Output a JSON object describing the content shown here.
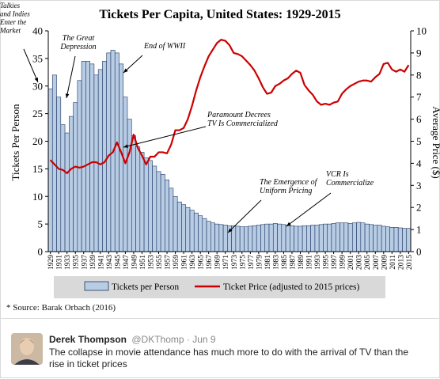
{
  "chart_data": {
    "type": "bar+line",
    "title": "Tickets Per Capita, United States: 1929-2015",
    "ylabel_left": "Tickets Per Person",
    "ylabel_right": "Average Price ($)",
    "ylim_left": [
      0,
      40
    ],
    "ylim_right": [
      0,
      10
    ],
    "yticks_left": [
      "0",
      "5",
      "10",
      "15",
      "20",
      "25",
      "30",
      "35",
      "40"
    ],
    "yticks_right": [
      "0",
      "1",
      "2",
      "3",
      "4",
      "5",
      "6",
      "7",
      "8",
      "9",
      "10"
    ],
    "grid": false,
    "legend_position": "bottom",
    "x": [
      1929,
      1930,
      1931,
      1932,
      1933,
      1934,
      1935,
      1936,
      1937,
      1938,
      1939,
      1940,
      1941,
      1942,
      1943,
      1944,
      1945,
      1946,
      1947,
      1948,
      1949,
      1950,
      1951,
      1952,
      1953,
      1954,
      1955,
      1956,
      1957,
      1958,
      1959,
      1960,
      1961,
      1962,
      1963,
      1964,
      1965,
      1966,
      1967,
      1968,
      1969,
      1970,
      1971,
      1972,
      1973,
      1974,
      1975,
      1976,
      1977,
      1978,
      1979,
      1980,
      1981,
      1982,
      1983,
      1984,
      1985,
      1986,
      1987,
      1988,
      1989,
      1990,
      1991,
      1992,
      1993,
      1994,
      1995,
      1996,
      1997,
      1998,
      1999,
      2000,
      2001,
      2002,
      2003,
      2004,
      2005,
      2006,
      2007,
      2008,
      2009,
      2010,
      2011,
      2012,
      2013,
      2014,
      2015
    ],
    "xtick_labels": [
      "1929",
      "1931",
      "1933",
      "1935",
      "1937",
      "1939",
      "1941",
      "1943",
      "1945",
      "1947",
      "1949",
      "1951",
      "1953",
      "1955",
      "1957",
      "1959",
      "1961",
      "1963",
      "1965",
      "1967",
      "1969",
      "1971",
      "1973",
      "1975",
      "1977",
      "1979",
      "1981",
      "1983",
      "1985",
      "1987",
      "1989",
      "1991",
      "1993",
      "1995",
      "1997",
      "1999",
      "2001",
      "2003",
      "2005",
      "2007",
      "2009",
      "2011",
      "2013",
      "2015"
    ],
    "series": [
      {
        "name": "Tickets per Person",
        "type": "bar",
        "axis": "left",
        "color": "#b8cce4",
        "values": [
          29.5,
          32,
          28,
          23,
          21.5,
          24.5,
          27,
          31,
          34.5,
          34.5,
          34,
          32,
          33,
          34.5,
          36,
          36.5,
          36,
          34,
          28,
          24,
          21,
          19,
          18,
          17,
          16.5,
          15.5,
          14.5,
          14,
          13,
          11.5,
          10,
          9,
          8.5,
          8,
          7.5,
          7,
          6.5,
          6,
          5.5,
          5.2,
          5,
          4.9,
          4.8,
          4.7,
          4.7,
          4.6,
          4.5,
          4.5,
          4.6,
          4.7,
          4.8,
          4.9,
          5,
          5,
          5.1,
          5,
          4.9,
          4.8,
          4.7,
          4.6,
          4.6,
          4.7,
          4.7,
          4.8,
          4.8,
          4.9,
          5,
          5,
          5.1,
          5.2,
          5.2,
          5.2,
          5.1,
          5.2,
          5.3,
          5.2,
          5,
          4.9,
          4.8,
          4.8,
          4.6,
          4.5,
          4.4,
          4.4,
          4.3,
          4.2,
          4.2
        ]
      },
      {
        "name": "Ticket Price (adjusted to 2015 prices)",
        "type": "line",
        "axis": "right",
        "color": "#cc0000",
        "values": [
          4.15,
          3.95,
          3.75,
          3.7,
          3.55,
          3.75,
          3.85,
          3.8,
          3.85,
          3.95,
          4.05,
          4.05,
          3.95,
          4.05,
          4.35,
          4.5,
          4.95,
          4.5,
          4.0,
          4.5,
          5.3,
          4.7,
          4.35,
          3.95,
          4.3,
          4.3,
          4.5,
          4.5,
          4.45,
          4.85,
          5.5,
          5.5,
          5.6,
          6.0,
          6.6,
          7.3,
          7.9,
          8.4,
          8.85,
          9.15,
          9.45,
          9.6,
          9.55,
          9.35,
          9.0,
          8.95,
          8.85,
          8.65,
          8.45,
          8.2,
          7.85,
          7.45,
          7.15,
          7.2,
          7.5,
          7.6,
          7.75,
          7.85,
          8.05,
          8.2,
          8.1,
          7.55,
          7.3,
          7.1,
          6.8,
          6.65,
          6.7,
          6.65,
          6.75,
          6.8,
          7.15,
          7.35,
          7.5,
          7.6,
          7.7,
          7.75,
          7.75,
          7.7,
          7.9,
          8.05,
          8.5,
          8.55,
          8.25,
          8.15,
          8.25,
          8.15,
          8.45
        ]
      }
    ],
    "annotations": [
      {
        "text": [
          "Talkies",
          "and Indies",
          "Enter the",
          "Market"
        ]
      },
      {
        "text": [
          "The Great",
          "Depression"
        ]
      },
      {
        "text": [
          "End of WWII"
        ]
      },
      {
        "text": [
          "Paramount Decrees",
          "TV Is Commercialized"
        ]
      },
      {
        "text": [
          "The Emergence of",
          "Uniform Pricing"
        ]
      },
      {
        "text": [
          "VCR Is",
          "Commercialize"
        ]
      }
    ]
  },
  "source_note": "* Source: Barak Orbach (2016)",
  "tweet": {
    "name": "Derek Thompson",
    "handle": "@DKThomp · Jun 9",
    "text": "The collapse in movie attendance has much more to do with the arrival of TV than the rise in ticket prices"
  }
}
